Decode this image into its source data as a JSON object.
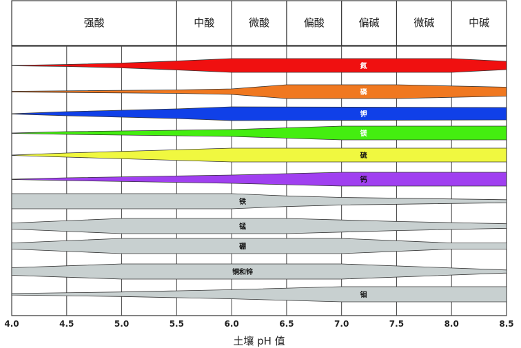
{
  "chart_data": {
    "type": "area",
    "xlabel": "土壤 pH 值",
    "xlim": [
      4.0,
      8.5
    ],
    "x_ticks": [
      "4.0",
      "4.5",
      "5.0",
      "5.5",
      "6.0",
      "6.5",
      "7.0",
      "7.5",
      "8.0",
      "8.5"
    ],
    "grid": true,
    "zones": [
      {
        "label": "强酸",
        "from": 4.0,
        "to": 5.5
      },
      {
        "label": "中酸",
        "from": 5.5,
        "to": 6.0
      },
      {
        "label": "微酸",
        "from": 6.0,
        "to": 6.5
      },
      {
        "label": "偏酸",
        "from": 6.5,
        "to": 7.0
      },
      {
        "label": "偏碱",
        "from": 7.0,
        "to": 7.5
      },
      {
        "label": "微碱",
        "from": 7.5,
        "to": 8.0
      },
      {
        "label": "中碱",
        "from": 8.0,
        "to": 8.5
      }
    ],
    "series": [
      {
        "name": "氮",
        "color": "#f01010",
        "label_color": "#ffffff",
        "label_x": 7.2,
        "availability": [
          [
            4.0,
            0
          ],
          [
            4.5,
            0.15
          ],
          [
            5.0,
            0.35
          ],
          [
            5.5,
            0.65
          ],
          [
            6.0,
            1
          ],
          [
            8.0,
            1
          ],
          [
            8.5,
            0.6
          ]
        ]
      },
      {
        "name": "磷",
        "color": "#f07820",
        "label_color": "#ffffff",
        "label_x": 7.2,
        "availability": [
          [
            4.0,
            0.05
          ],
          [
            5.5,
            0.25
          ],
          [
            6.0,
            0.4
          ],
          [
            6.5,
            1
          ],
          [
            7.5,
            1
          ],
          [
            8.5,
            0.65
          ]
        ]
      },
      {
        "name": "钾",
        "color": "#1040e8",
        "label_color": "#ffffff",
        "label_x": 7.2,
        "availability": [
          [
            4.0,
            0
          ],
          [
            4.5,
            0.3
          ],
          [
            5.5,
            0.7
          ],
          [
            6.0,
            1
          ],
          [
            8.5,
            0.9
          ]
        ]
      },
      {
        "name": "镁",
        "color": "#44ee10",
        "label_color": "#ffffff",
        "label_x": 7.2,
        "availability": [
          [
            4.0,
            0
          ],
          [
            4.5,
            0.2
          ],
          [
            6.0,
            0.5
          ],
          [
            7.0,
            1
          ],
          [
            8.5,
            1
          ]
        ]
      },
      {
        "name": "硫",
        "color": "#f0f840",
        "label_color": "#111111",
        "label_x": 7.2,
        "availability": [
          [
            4.0,
            0
          ],
          [
            4.5,
            0.3
          ],
          [
            6.0,
            1
          ],
          [
            8.5,
            1
          ]
        ]
      },
      {
        "name": "钙",
        "color": "#a040f0",
        "label_color": "#111111",
        "label_x": 7.2,
        "availability": [
          [
            4.0,
            0
          ],
          [
            4.5,
            0.2
          ],
          [
            6.0,
            0.6
          ],
          [
            7.0,
            1
          ],
          [
            8.5,
            1
          ]
        ]
      },
      {
        "name": "铁",
        "color": "#c8d0d0",
        "label_color": "#111111",
        "label_x": 6.1,
        "availability": [
          [
            4.0,
            1
          ],
          [
            6.0,
            1
          ],
          [
            6.5,
            0.7
          ],
          [
            7.0,
            0.5
          ],
          [
            8.5,
            0.2
          ]
        ]
      },
      {
        "name": "锰",
        "color": "#c8d0d0",
        "label_color": "#111111",
        "label_x": 6.1,
        "availability": [
          [
            4.0,
            0.4
          ],
          [
            5.0,
            1
          ],
          [
            6.5,
            1
          ],
          [
            7.5,
            0.6
          ],
          [
            8.5,
            0.3
          ]
        ]
      },
      {
        "name": "硼",
        "color": "#c8d0d0",
        "label_color": "#111111",
        "label_x": 6.1,
        "availability": [
          [
            4.0,
            0.4
          ],
          [
            5.0,
            1
          ],
          [
            7.0,
            1
          ],
          [
            8.0,
            0.4
          ],
          [
            8.5,
            0.4
          ]
        ]
      },
      {
        "name": "铜和锌",
        "color": "#c8d0d0",
        "label_color": "#111111",
        "label_x": 6.1,
        "availability": [
          [
            4.0,
            0.5
          ],
          [
            5.0,
            1
          ],
          [
            7.0,
            1
          ],
          [
            8.5,
            0.2
          ]
        ]
      },
      {
        "name": "钼",
        "color": "#c8d0d0",
        "label_color": "#111111",
        "label_x": 7.2,
        "availability": [
          [
            4.0,
            0.1
          ],
          [
            5.0,
            0.3
          ],
          [
            6.0,
            0.6
          ],
          [
            7.0,
            1
          ],
          [
            8.5,
            1
          ]
        ]
      }
    ]
  }
}
